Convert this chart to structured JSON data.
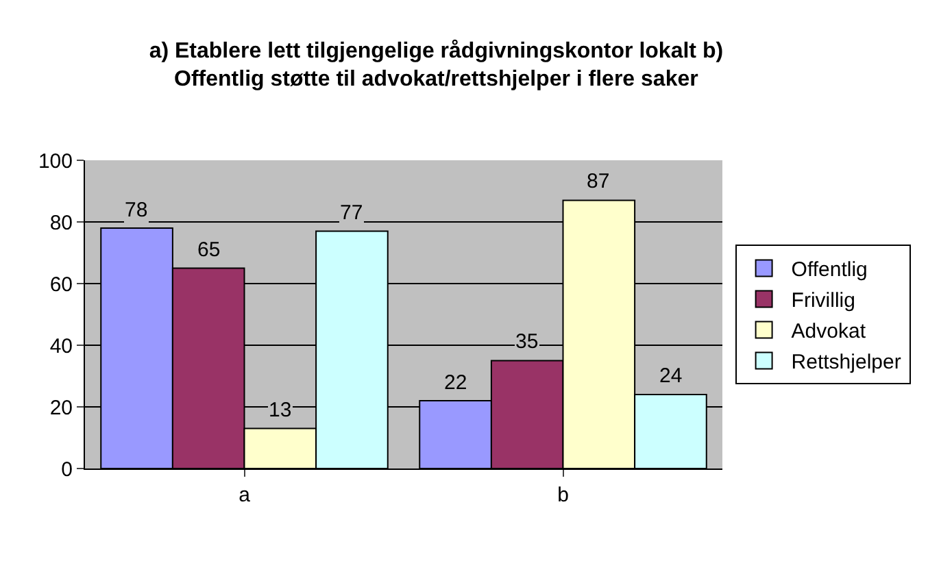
{
  "chart_data": {
    "type": "bar",
    "title": "a) Etablere lett tilgjengelige rådgivningskontor lokalt b) Offentlig støtte til advokat/rettshjelper i flere saker",
    "categories": [
      "a",
      "b"
    ],
    "series": [
      {
        "name": "Offentlig",
        "color": "#9999ff",
        "values": [
          78,
          22
        ]
      },
      {
        "name": "Frivillig",
        "color": "#993366",
        "values": [
          65,
          35
        ]
      },
      {
        "name": "Advokat",
        "color": "#ffffcc",
        "values": [
          13,
          87
        ]
      },
      {
        "name": "Rettshjelper",
        "color": "#ccffff",
        "values": [
          77,
          24
        ]
      }
    ],
    "ylim": [
      0,
      100
    ],
    "yticks": [
      0,
      20,
      40,
      60,
      80,
      100
    ],
    "grid": "y",
    "legend": "right",
    "data_labels": true
  }
}
